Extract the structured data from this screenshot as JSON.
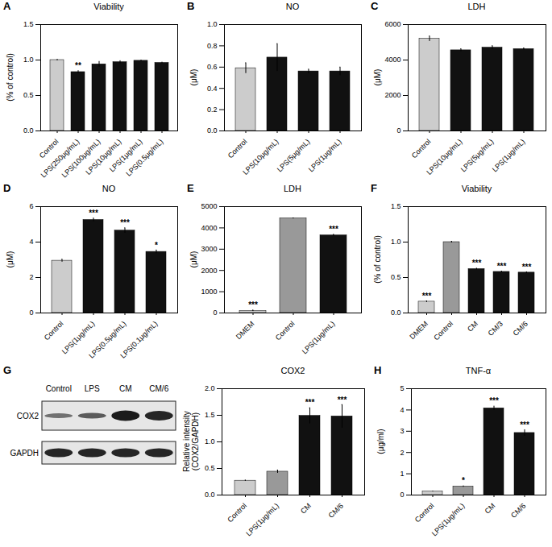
{
  "chart_data": [
    {
      "type": "bar",
      "panel": "A",
      "title": "Viability",
      "y_label": "(% of control)",
      "categories": [
        "Control",
        "LPS(250μg/mL)",
        "LPS(100μg/mL)",
        "LPS(10μg/mL)",
        "LPS(1μg/mL)",
        "LPS(0.5μg/mL)"
      ],
      "values": [
        1.0,
        0.83,
        0.94,
        0.97,
        0.99,
        0.96
      ],
      "errors": [
        0.01,
        0.02,
        0.04,
        0.02,
        0.01,
        0.01
      ],
      "significance": [
        null,
        "**",
        null,
        null,
        null,
        null
      ],
      "colors": [
        "#cccccc",
        "#111111",
        "#111111",
        "#111111",
        "#111111",
        "#111111"
      ],
      "ylim": [
        0,
        1.5
      ],
      "yticks": [
        {
          "value": 0,
          "label": "0.0"
        },
        {
          "value": 0.5,
          "label": "0.5"
        },
        {
          "value": 1,
          "label": "1.0"
        },
        {
          "value": 1.5,
          "label": "1.5"
        }
      ]
    },
    {
      "type": "bar",
      "panel": "B",
      "title": "NO",
      "y_label": "(μM)",
      "categories": [
        "Control",
        "LPS(10μg/mL)",
        "LPS(5μg/mL)",
        "LPS(1μg/mL)"
      ],
      "values": [
        0.59,
        0.69,
        0.56,
        0.56
      ],
      "errors": [
        0.05,
        0.13,
        0.02,
        0.04
      ],
      "significance": [
        null,
        null,
        null,
        null
      ],
      "colors": [
        "#cccccc",
        "#111111",
        "#111111",
        "#111111"
      ],
      "ylim": [
        0,
        1.0
      ],
      "yticks": [
        {
          "value": 0,
          "label": "0.0"
        },
        0.2,
        0.4,
        0.6,
        0.8,
        {
          "value": 1,
          "label": "1.0"
        }
      ]
    },
    {
      "type": "bar",
      "panel": "C",
      "title": "LDH",
      "y_label": "(μM)",
      "categories": [
        "Control",
        "LPS(10μg/mL)",
        "LPS(5μg/mL)",
        "LPS(1μg/mL)"
      ],
      "values": [
        5200,
        4550,
        4700,
        4620
      ],
      "errors": [
        150,
        80,
        100,
        60
      ],
      "significance": [
        null,
        null,
        null,
        null
      ],
      "colors": [
        "#cccccc",
        "#111111",
        "#111111",
        "#111111"
      ],
      "ylim": [
        0,
        6000
      ],
      "yticks": [
        0,
        2000,
        4000,
        6000
      ]
    },
    {
      "type": "bar",
      "panel": "D",
      "title": "NO",
      "y_label": "(μM)",
      "categories": [
        "Control",
        "LPS(1μg/mL)",
        "LPS(0.5μg/mL)",
        "LPS(0.1μg/mL)"
      ],
      "values": [
        2.95,
        5.25,
        4.65,
        3.45
      ],
      "errors": [
        0.08,
        0.1,
        0.15,
        0.1
      ],
      "significance": [
        null,
        "***",
        "***",
        "*"
      ],
      "colors": [
        "#cccccc",
        "#111111",
        "#111111",
        "#111111"
      ],
      "ylim": [
        0,
        6
      ],
      "yticks": [
        0,
        2,
        4,
        6
      ]
    },
    {
      "type": "bar",
      "panel": "E",
      "title": "LDH",
      "y_label": "(μM)",
      "categories": [
        "DMEM",
        "Control",
        "LPS(1μg/mL)"
      ],
      "values": [
        100,
        4450,
        3650
      ],
      "errors": [
        30,
        20,
        40
      ],
      "significance": [
        "***",
        null,
        "***"
      ],
      "colors": [
        "#cccccc",
        "#999999",
        "#111111"
      ],
      "ylim": [
        0,
        5000
      ],
      "yticks": [
        0,
        1000,
        2000,
        3000,
        4000,
        5000
      ]
    },
    {
      "type": "bar",
      "panel": "F",
      "title": "Viability",
      "y_label": "(% of control)",
      "categories": [
        "DMEM",
        "Control",
        "CM",
        "CM/3",
        "CM/6"
      ],
      "values": [
        0.16,
        1.0,
        0.62,
        0.58,
        0.57
      ],
      "errors": [
        0.01,
        0.01,
        0.01,
        0.01,
        0.01
      ],
      "significance": [
        "***",
        null,
        "***",
        "***",
        "***"
      ],
      "colors": [
        "#cccccc",
        "#999999",
        "#111111",
        "#111111",
        "#111111"
      ],
      "ylim": [
        0,
        1.5
      ],
      "yticks": [
        {
          "value": 0,
          "label": "0.0"
        },
        {
          "value": 0.5,
          "label": "0.5"
        },
        {
          "value": 1,
          "label": "1.0"
        },
        {
          "value": 1.5,
          "label": "1.5"
        }
      ]
    },
    {
      "type": "bar",
      "panel": "G",
      "title": "COX2",
      "y_label": "Relative intensity (COX2/GAPDH)",
      "categories": [
        "Control",
        "LPS(1μg/mL)",
        "CM",
        "CM/6"
      ],
      "values": [
        0.27,
        0.44,
        1.49,
        1.48
      ],
      "errors": [
        0.01,
        0.03,
        0.15,
        0.22
      ],
      "significance": [
        null,
        null,
        "***",
        "***"
      ],
      "colors": [
        "#cccccc",
        "#999999",
        "#111111",
        "#111111"
      ],
      "ylim": [
        0,
        2.0
      ],
      "yticks": [
        {
          "value": 0,
          "label": "0.0"
        },
        {
          "value": 0.5,
          "label": "0.5"
        },
        {
          "value": 1,
          "label": "1.0"
        },
        {
          "value": 1.5,
          "label": "1.5"
        },
        {
          "value": 2,
          "label": "2.0"
        }
      ]
    },
    {
      "type": "bar",
      "panel": "H",
      "title": "TNF-α",
      "y_label": "(μg/ml)",
      "categories": [
        "Control",
        "LPS(1μg/mL)",
        "CM",
        "CM/6"
      ],
      "values": [
        0.17,
        0.4,
        4.08,
        2.92
      ],
      "errors": [
        0.02,
        0.03,
        0.1,
        0.15
      ],
      "significance": [
        null,
        "*",
        "***",
        "***"
      ],
      "colors": [
        "#cccccc",
        "#999999",
        "#111111",
        "#111111"
      ],
      "ylim": [
        0,
        5
      ],
      "yticks": [
        0,
        1,
        2,
        3,
        4,
        5
      ]
    }
  ],
  "blot": {
    "lanes": [
      "Control",
      "LPS",
      "CM",
      "CM/6"
    ],
    "rows": [
      "COX2",
      "GAPDH"
    ]
  }
}
